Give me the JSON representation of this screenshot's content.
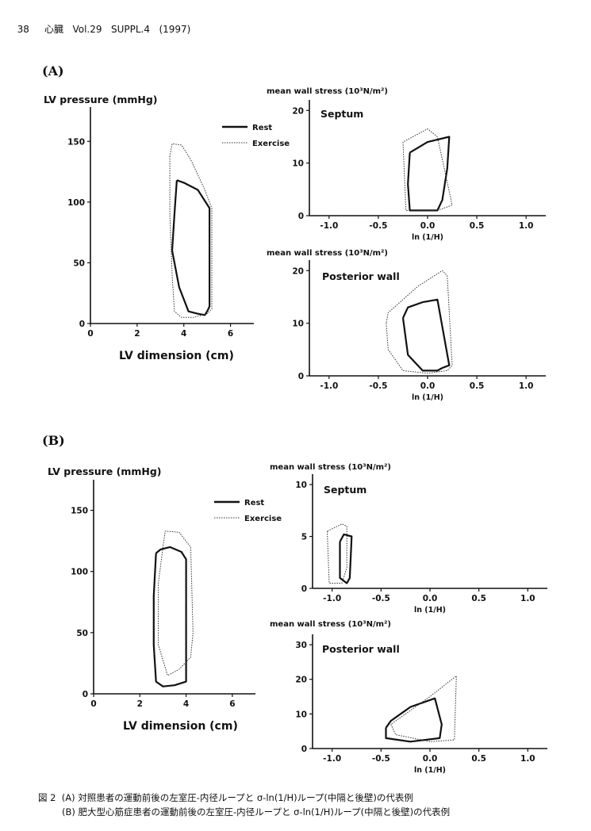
{
  "header": {
    "page": "38",
    "journal": "心臓",
    "volume": "Vol.29",
    "suppl": "SUPPL.4",
    "year": "(1997)"
  },
  "panels": [
    {
      "label": "(A)"
    },
    {
      "label": "(B)"
    }
  ],
  "caption": {
    "line1": "図 2  (A) 対照患者の運動前後の左室圧-内径ループと σ-ln(1/H)ループ(中隔と後壁)の代表例",
    "line2": "(B) 肥大型心筋症患者の運動前後の左室圧-内径ループと σ-ln(1/H)ループ(中隔と後壁)の代表例"
  },
  "chart_data": [
    {
      "id": "A-pv",
      "type": "line",
      "ylabel": "LV pressure (mmHg)",
      "xlabel": "LV dimension (cm)",
      "xlim": [
        0,
        7
      ],
      "ylim": [
        0,
        175
      ],
      "xticks": [
        0,
        2,
        4,
        6
      ],
      "yticks": [
        0,
        50,
        100,
        150
      ],
      "legend": [
        "Rest",
        "Exercise"
      ],
      "series": [
        {
          "name": "Rest",
          "x": [
            3.7,
            3.6,
            3.5,
            3.8,
            4.2,
            4.6,
            4.9,
            5.0,
            5.1,
            5.1,
            4.6,
            4.0,
            3.7
          ],
          "y": [
            118,
            90,
            60,
            30,
            10,
            8,
            7,
            10,
            14,
            95,
            110,
            116,
            118
          ]
        },
        {
          "name": "Exercise",
          "x": [
            3.4,
            3.4,
            3.5,
            3.6,
            3.9,
            4.4,
            5.0,
            5.2,
            5.2,
            4.9,
            4.3,
            3.9,
            3.5,
            3.4
          ],
          "y": [
            138,
            90,
            40,
            10,
            5,
            5,
            8,
            12,
            95,
            110,
            135,
            147,
            148,
            138
          ]
        }
      ]
    },
    {
      "id": "A-septum",
      "type": "line",
      "title": "Septum",
      "ylabel": "mean wall stress (10³N/m²)",
      "xlabel": "ln (1/H)",
      "xlim": [
        -1.2,
        1.2
      ],
      "ylim": [
        0,
        22
      ],
      "xticks": [
        "-1.0",
        "-0.5",
        "0.0",
        "0.5",
        "1.0"
      ],
      "yticks": [
        0,
        10,
        20
      ],
      "series": [
        {
          "name": "Rest",
          "x": [
            -0.18,
            -0.2,
            -0.18,
            0.1,
            0.15,
            0.2,
            0.22,
            0.0,
            -0.18
          ],
          "y": [
            12,
            6,
            1,
            1,
            3,
            9,
            15,
            14,
            12
          ]
        },
        {
          "name": "Exercise",
          "x": [
            -0.25,
            -0.22,
            -0.1,
            0.1,
            0.25,
            0.1,
            0.0,
            -0.15,
            -0.25
          ],
          "y": [
            14,
            1,
            1,
            1,
            2,
            15,
            16.5,
            15,
            14
          ]
        }
      ]
    },
    {
      "id": "A-posterior",
      "type": "line",
      "title": "Posterior wall",
      "ylabel": "mean wall stress (10³N/m²)",
      "xlabel": "ln (1/H)",
      "xlim": [
        -1.2,
        1.2
      ],
      "ylim": [
        0,
        22
      ],
      "xticks": [
        "-1.0",
        "-0.5",
        "0.0",
        "0.5",
        "1.0"
      ],
      "yticks": [
        0,
        10,
        20
      ],
      "series": [
        {
          "name": "Rest",
          "x": [
            -0.25,
            -0.2,
            -0.05,
            0.1,
            0.15,
            0.22,
            0.1,
            -0.05,
            -0.2,
            -0.25
          ],
          "y": [
            11,
            4,
            1,
            1,
            1.5,
            2,
            14.5,
            14,
            13,
            11
          ]
        },
        {
          "name": "Exercise",
          "x": [
            -0.42,
            -0.4,
            -0.25,
            0.0,
            0.2,
            0.25,
            0.2,
            0.15,
            -0.1,
            -0.4,
            -0.42
          ],
          "y": [
            10,
            5,
            1,
            0.5,
            1,
            2,
            19,
            20,
            17,
            12,
            10
          ]
        }
      ]
    },
    {
      "id": "B-pv",
      "type": "line",
      "ylabel": "LV pressure (mmHg)",
      "xlabel": "LV dimension (cm)",
      "xlim": [
        0,
        7
      ],
      "ylim": [
        0,
        175
      ],
      "xticks": [
        0,
        2,
        4,
        6
      ],
      "yticks": [
        0,
        50,
        100,
        150
      ],
      "legend": [
        "Rest",
        "Exercise"
      ],
      "series": [
        {
          "name": "Rest",
          "x": [
            2.7,
            2.6,
            2.6,
            2.7,
            3.0,
            3.5,
            4.0,
            4.0,
            3.8,
            3.3,
            2.9,
            2.7
          ],
          "y": [
            115,
            80,
            40,
            10,
            6,
            7,
            10,
            110,
            116,
            120,
            118,
            115
          ]
        },
        {
          "name": "Exercise",
          "x": [
            3.0,
            2.8,
            2.8,
            3.2,
            3.7,
            4.2,
            4.3,
            4.2,
            3.7,
            3.1,
            3.0
          ],
          "y": [
            120,
            90,
            40,
            15,
            20,
            30,
            50,
            120,
            132,
            133,
            120
          ]
        }
      ]
    },
    {
      "id": "B-septum",
      "type": "line",
      "title": "Septum",
      "ylabel": "mean wall stress (10³N/m²)",
      "xlabel": "ln (1/H)",
      "xlim": [
        -1.2,
        1.2
      ],
      "ylim": [
        0,
        11
      ],
      "xticks": [
        "-1.0",
        "-0.5",
        "0.0",
        "0.5",
        "1.0"
      ],
      "yticks": [
        0,
        5,
        10
      ],
      "series": [
        {
          "name": "Rest",
          "x": [
            -0.92,
            -0.92,
            -0.85,
            -0.82,
            -0.8,
            -0.88,
            -0.92
          ],
          "y": [
            4.5,
            1,
            0.5,
            1,
            5,
            5.2,
            4.5
          ]
        },
        {
          "name": "Exercise",
          "x": [
            -1.05,
            -1.03,
            -0.9,
            -0.85,
            -0.85,
            -0.9,
            -1.05
          ],
          "y": [
            5.5,
            0.5,
            0.5,
            2,
            6,
            6.2,
            5.5
          ]
        }
      ]
    },
    {
      "id": "B-posterior",
      "type": "line",
      "title": "Posterior wall",
      "ylabel": "mean wall stress (10³N/m²)",
      "xlabel": "ln (1/H)",
      "xlim": [
        -1.2,
        1.2
      ],
      "ylim": [
        0,
        33
      ],
      "xticks": [
        "-1.0",
        "-0.5",
        "0.0",
        "0.5",
        "1.0"
      ],
      "yticks": [
        0,
        10,
        20,
        30
      ],
      "series": [
        {
          "name": "Rest",
          "x": [
            -0.45,
            -0.45,
            -0.2,
            0.1,
            0.12,
            0.05,
            -0.2,
            -0.4,
            -0.45
          ],
          "y": [
            6,
            3,
            2,
            3,
            7,
            14.5,
            12,
            8,
            6
          ]
        },
        {
          "name": "Exercise",
          "x": [
            -0.4,
            -0.35,
            0.0,
            0.25,
            0.27,
            0.0,
            -0.4
          ],
          "y": [
            7,
            4,
            2,
            2.5,
            21,
            15,
            7
          ]
        }
      ]
    }
  ]
}
